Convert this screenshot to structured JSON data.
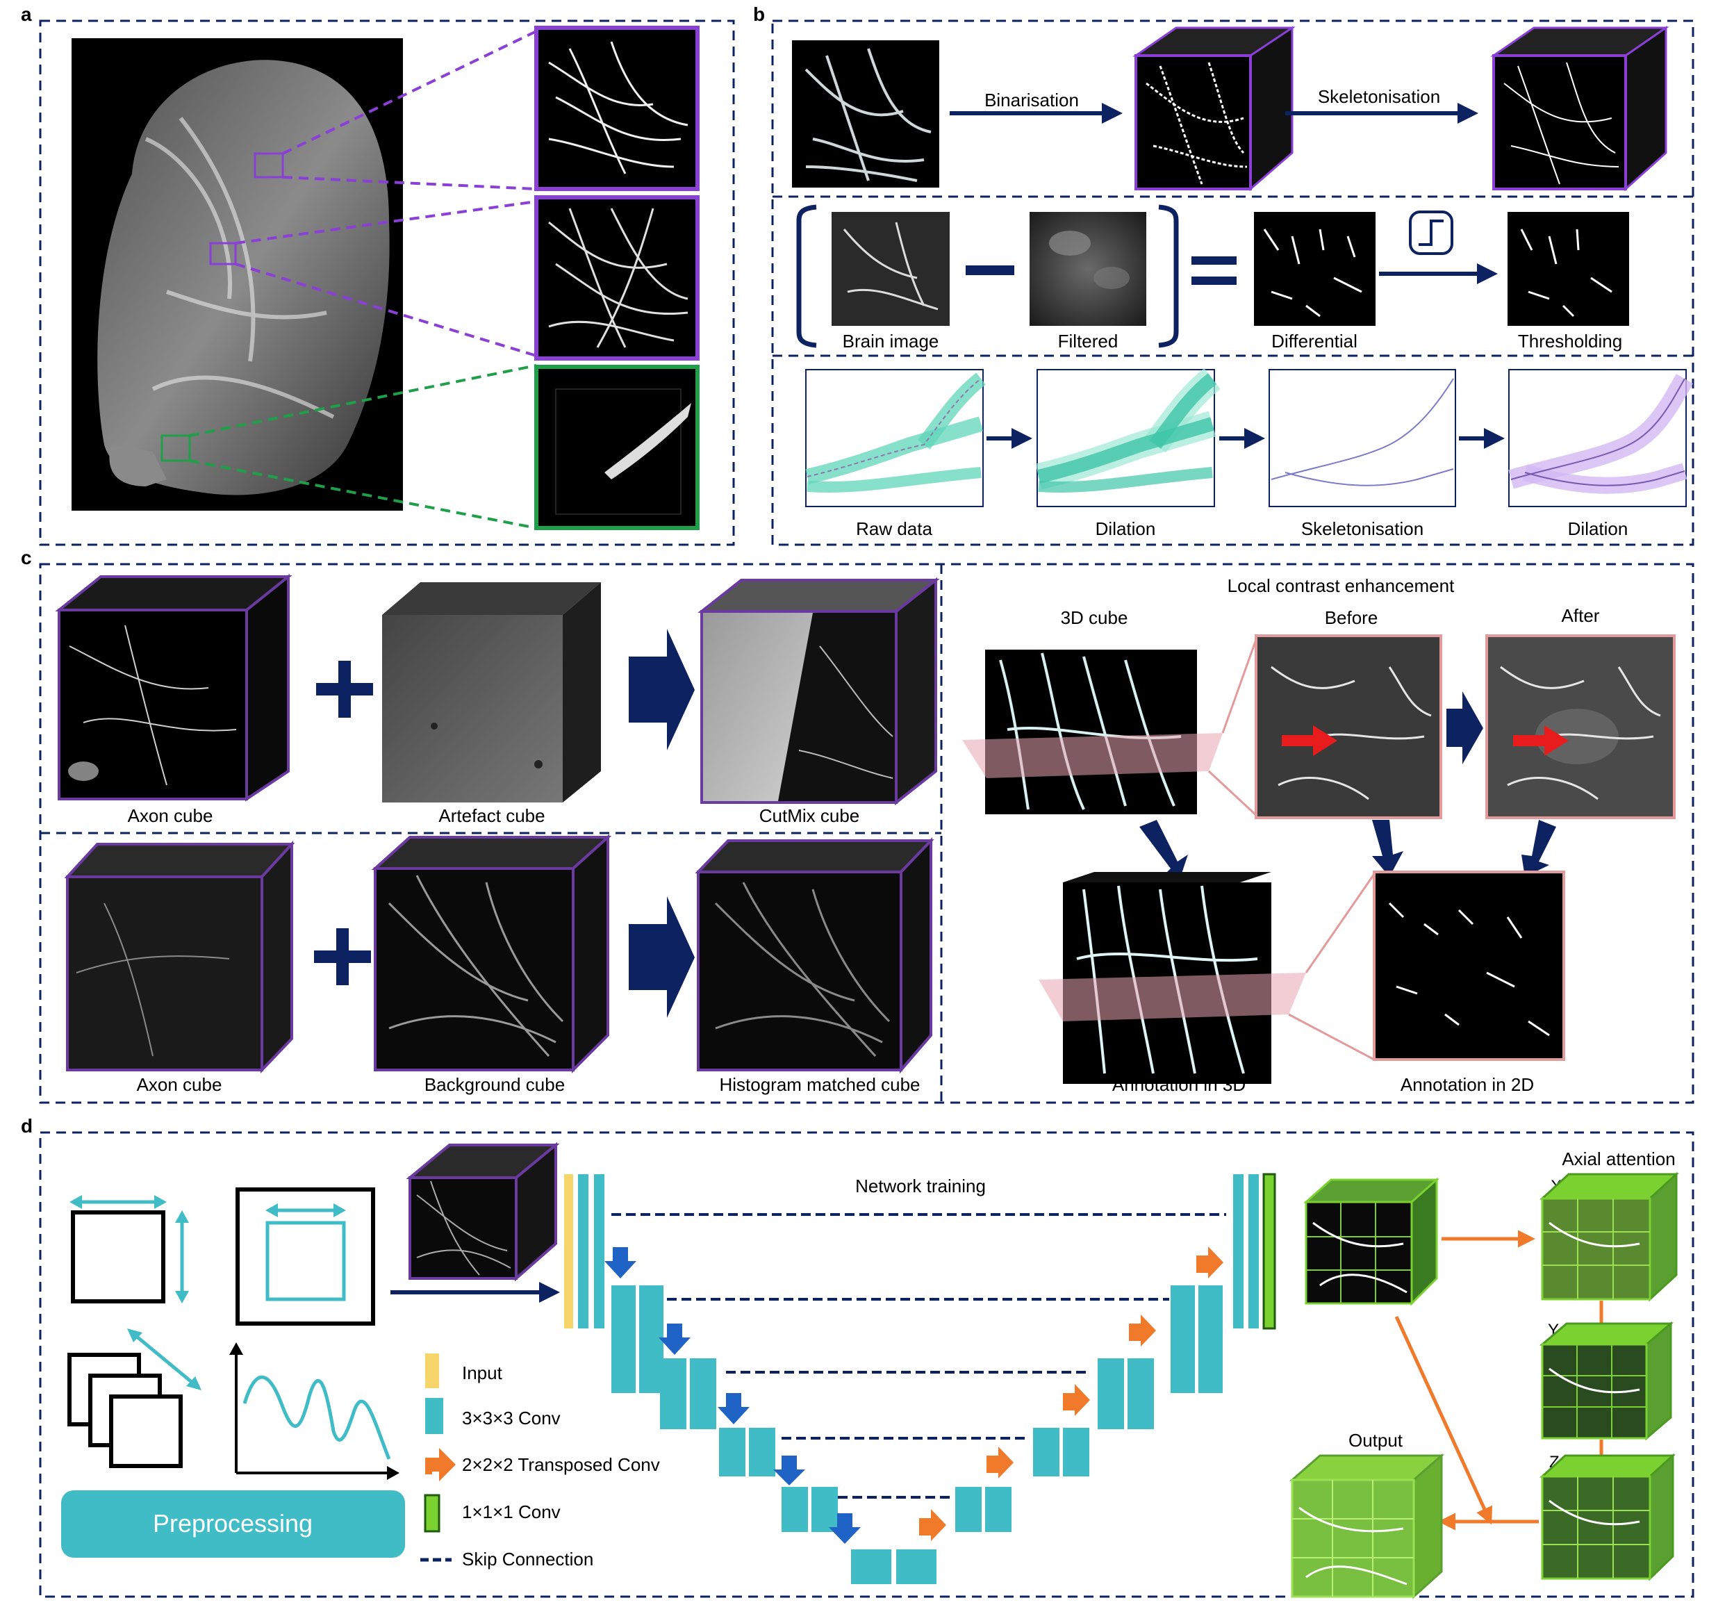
{
  "panels": {
    "a": "a",
    "b": "b",
    "c": "c",
    "d": "d"
  },
  "colors": {
    "navy": "#0d2260",
    "purple": "#8a3fd6",
    "green": "#1f9f4a",
    "teal": "#3fbcc6",
    "mint": "#5fd6b8",
    "lavender": "#b58ee6",
    "orange": "#f07a2a",
    "blue_arrow": "#1f63c6",
    "yellow": "#f6d56a",
    "lime": "#7ad130",
    "pink": "#e39a9a",
    "red": "#e81c1c"
  },
  "b": {
    "top": {
      "binarisation": "Binarisation",
      "skeletonisation": "Skeletonisation"
    },
    "mid": {
      "brain_image": "Brain image",
      "filtered": "Filtered",
      "differential": "Differential",
      "thresholding": "Thresholding"
    },
    "bottom": {
      "raw_data": "Raw data",
      "dilation1": "Dilation",
      "skeletonisation": "Skeletonisation",
      "dilation2": "Dilation"
    }
  },
  "c": {
    "row1": {
      "axon_cube": "Axon cube",
      "artefact_cube": "Artefact cube",
      "cutmix_cube": "CutMix cube"
    },
    "row2": {
      "axon_cube": "Axon cube",
      "background_cube": "Background cube",
      "histogram_matched_cube": "Histogram matched cube"
    },
    "right": {
      "title": "Local contrast enhancement",
      "cube_3d": "3D cube",
      "before": "Before",
      "after": "After",
      "annotation_3d": "Annotation in 3D",
      "annotation_2d": "Annotation in 2D"
    }
  },
  "d": {
    "preprocessing": "Preprocessing",
    "network_training": "Network training",
    "legend": {
      "input": "Input",
      "conv3": "3×3×3 Conv",
      "tconv": "2×2×2 Transposed Conv",
      "conv1": "1×1×1 Conv",
      "skip": "Skip Connection"
    },
    "output": "Output",
    "axial_attention": "Axial attention",
    "axis_x": "X",
    "axis_y": "Y",
    "axis_z": "Z"
  }
}
